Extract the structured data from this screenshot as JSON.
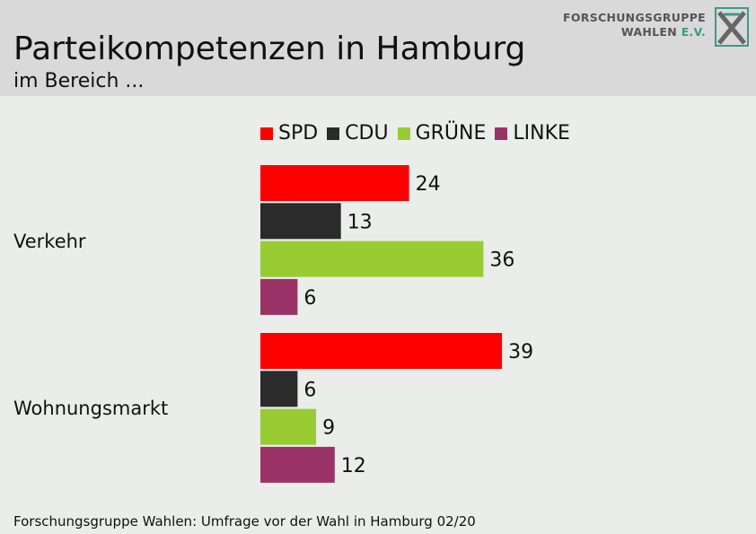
{
  "header": {
    "title": "Parteikompetenzen in Hamburg",
    "subtitle": "im Bereich ...",
    "logo_line1": "FORSCHUNGSGRUPPE",
    "logo_line2_main": "WAHLEN",
    "logo_line2_accent": "E.V."
  },
  "footer": {
    "source": "Forschungsgruppe Wahlen: Umfrage vor der Wahl in Hamburg 02/20"
  },
  "chart_data": {
    "type": "bar",
    "orientation": "horizontal",
    "title": "Parteikompetenzen in Hamburg",
    "subtitle": "im Bereich ...",
    "categories": [
      "Verkehr",
      "Wohnungsmarkt"
    ],
    "series": [
      {
        "name": "SPD",
        "color": "#ff0000",
        "values": [
          24,
          39
        ]
      },
      {
        "name": "CDU",
        "color": "#2b2b2b",
        "values": [
          13,
          6
        ]
      },
      {
        "name": "GRÜNE",
        "color": "#99cc33",
        "values": [
          36,
          9
        ]
      },
      {
        "name": "LINKE",
        "color": "#993366",
        "values": [
          6,
          12
        ]
      }
    ],
    "legend_placement": "top",
    "data_labels": true,
    "grid": false,
    "xlim": [
      0,
      40
    ]
  }
}
